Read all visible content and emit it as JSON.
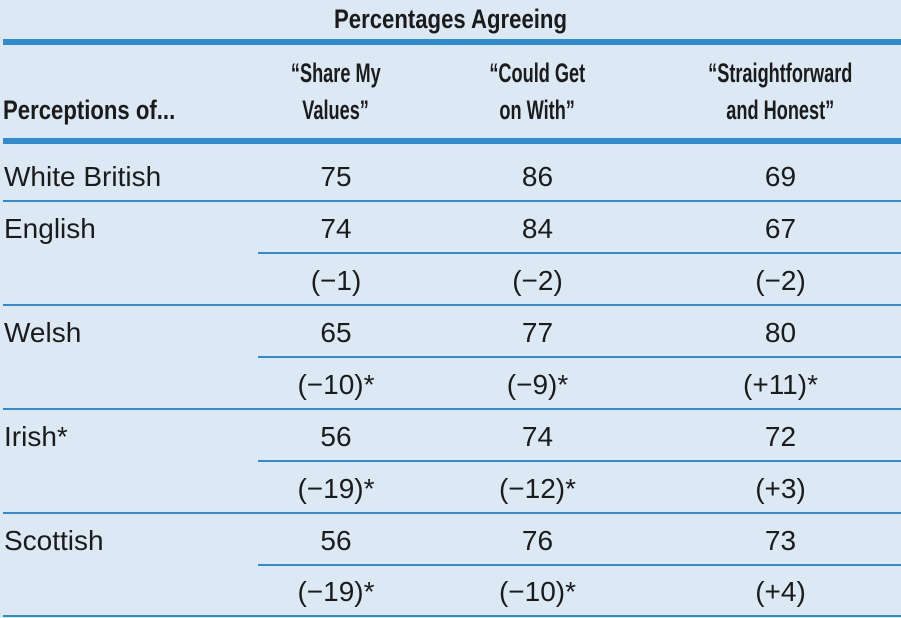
{
  "table": {
    "title": "Percentages Agreeing",
    "row_header": "Perceptions of...",
    "columns": [
      [
        "“Share My",
        "Values”"
      ],
      [
        "“Could Get",
        "on With”"
      ],
      [
        "“Straightforward",
        "and Honest”"
      ]
    ],
    "rows": [
      {
        "label": "White British",
        "values": [
          "75",
          "86",
          "69"
        ],
        "diffs": null
      },
      {
        "label": "English",
        "values": [
          "74",
          "84",
          "67"
        ],
        "diffs": [
          "(−1)",
          "(−2)",
          "(−2)"
        ]
      },
      {
        "label": "Welsh",
        "values": [
          "65",
          "77",
          "80"
        ],
        "diffs": [
          "(−10)*",
          "(−9)*",
          "(+11)*"
        ]
      },
      {
        "label": "Irish*",
        "values": [
          "56",
          "74",
          "72"
        ],
        "diffs": [
          "(−19)*",
          "(−12)*",
          "(+3)"
        ]
      },
      {
        "label": "Scottish",
        "values": [
          "56",
          "76",
          "73"
        ],
        "diffs": [
          "(−19)*",
          "(−10)*",
          "(+4)"
        ]
      }
    ]
  }
}
